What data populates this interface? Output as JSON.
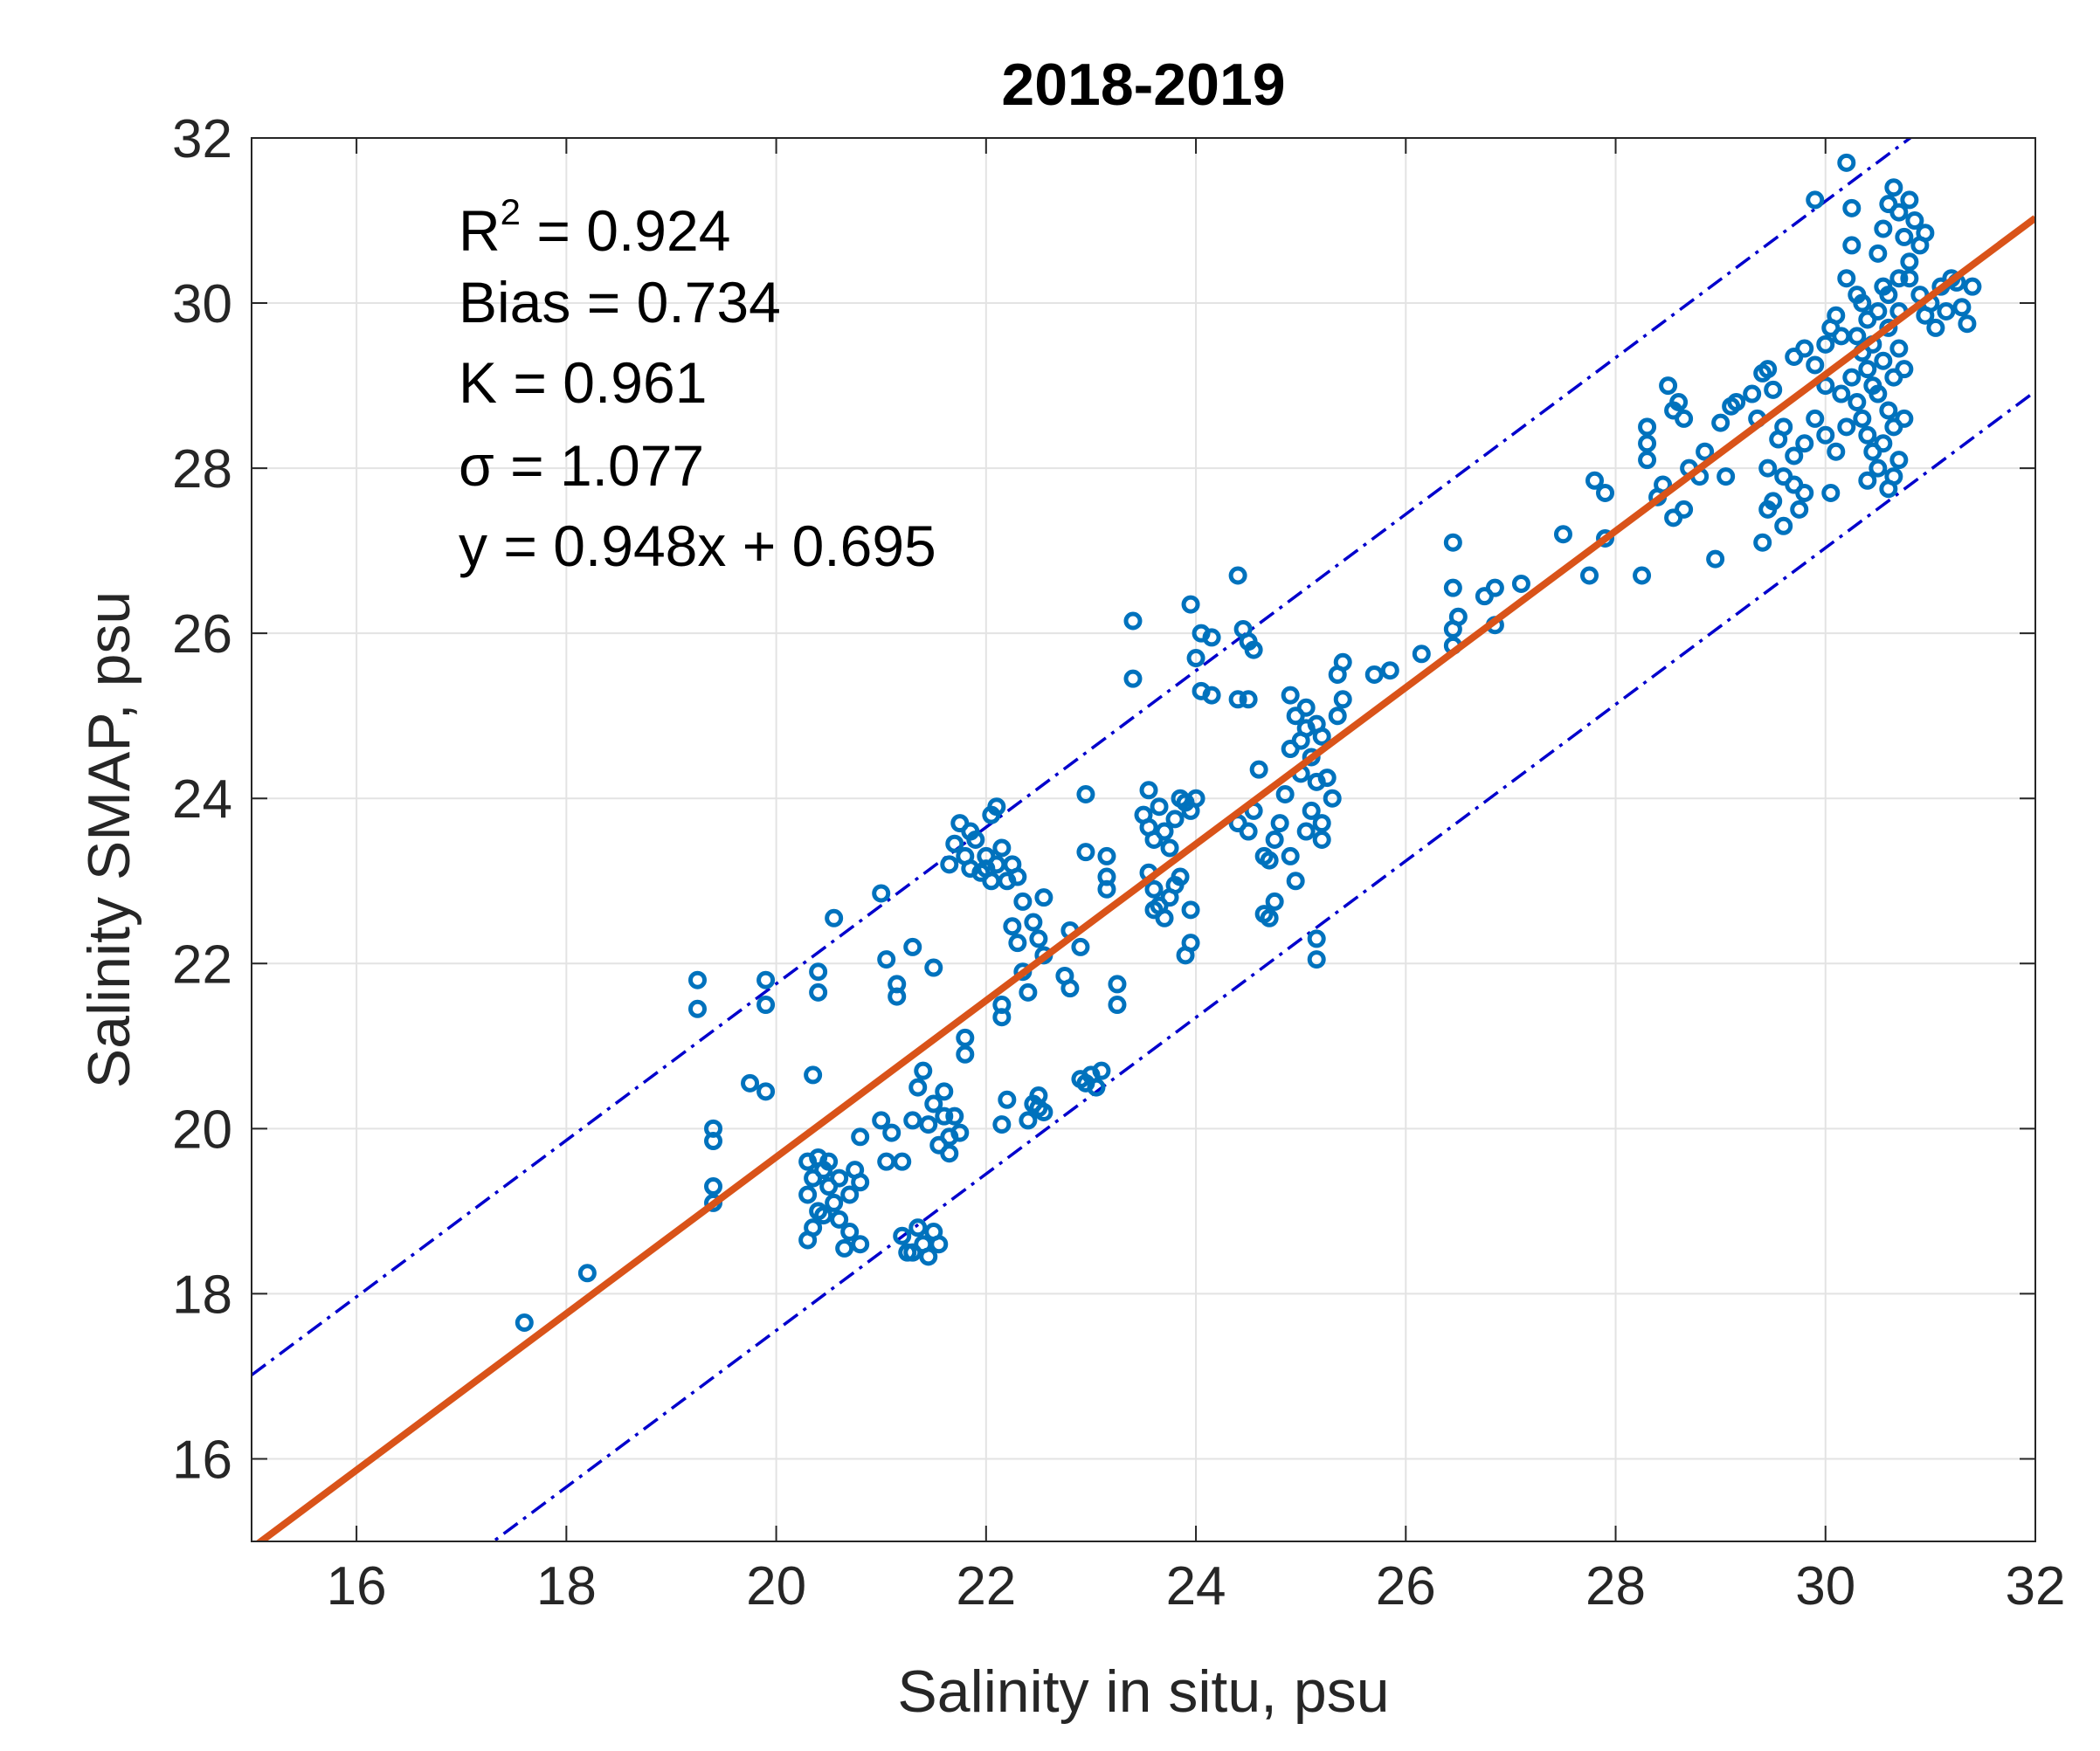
{
  "chart_data": {
    "type": "scatter",
    "title": "2018-2019",
    "xlabel": "Salinity in situ, psu",
    "ylabel": "Salinity  SMAP, psu",
    "xlim": [
      15,
      32
    ],
    "ylim": [
      15,
      32
    ],
    "xticks": [
      16,
      18,
      20,
      22,
      24,
      26,
      28,
      30,
      32
    ],
    "yticks": [
      16,
      18,
      20,
      22,
      24,
      26,
      28,
      30,
      32
    ],
    "grid": true,
    "annotations": {
      "r2_base": "R",
      "r2_sup": "2",
      "r2_value": " = 0.924",
      "bias": "Bias = 0.734",
      "k": "K = 0.961",
      "sigma": "σ = 1.077",
      "equation": "y = 0.948x + 0.695"
    },
    "fit_line": {
      "slope": 0.948,
      "intercept": 0.695,
      "color": "#d95319"
    },
    "confidence_lines": {
      "offset": 2.1,
      "color": "#0000cc"
    },
    "marker_color": "#0072bd",
    "points": [
      [
        17.6,
        17.65
      ],
      [
        18.2,
        18.25
      ],
      [
        19.25,
        21.8
      ],
      [
        19.25,
        21.45
      ],
      [
        19.4,
        20.0
      ],
      [
        19.4,
        19.85
      ],
      [
        19.4,
        19.3
      ],
      [
        19.4,
        19.1
      ],
      [
        19.75,
        20.55
      ],
      [
        19.9,
        20.45
      ],
      [
        19.9,
        21.8
      ],
      [
        19.9,
        21.5
      ],
      [
        20.35,
        20.65
      ],
      [
        20.4,
        21.9
      ],
      [
        20.4,
        21.65
      ],
      [
        20.55,
        22.55
      ],
      [
        20.3,
        19.6
      ],
      [
        20.35,
        19.4
      ],
      [
        20.3,
        19.2
      ],
      [
        20.4,
        19.0
      ],
      [
        20.35,
        18.8
      ],
      [
        20.3,
        18.65
      ],
      [
        20.45,
        19.5
      ],
      [
        20.5,
        19.3
      ],
      [
        20.55,
        19.1
      ],
      [
        20.4,
        19.65
      ],
      [
        20.6,
        19.4
      ],
      [
        20.7,
        19.2
      ],
      [
        20.75,
        19.5
      ],
      [
        20.8,
        19.35
      ],
      [
        20.6,
        18.9
      ],
      [
        20.7,
        18.75
      ],
      [
        20.8,
        18.6
      ],
      [
        20.65,
        18.55
      ],
      [
        20.5,
        19.6
      ],
      [
        20.45,
        18.95
      ],
      [
        20.8,
        19.9
      ],
      [
        21.0,
        20.1
      ],
      [
        21.05,
        19.6
      ],
      [
        21.1,
        19.95
      ],
      [
        21.2,
        19.6
      ],
      [
        21.0,
        22.85
      ],
      [
        21.05,
        22.05
      ],
      [
        21.15,
        21.75
      ],
      [
        21.15,
        21.6
      ],
      [
        21.3,
        22.2
      ],
      [
        21.5,
        21.95
      ],
      [
        21.2,
        18.7
      ],
      [
        21.25,
        18.5
      ],
      [
        21.35,
        18.8
      ],
      [
        21.4,
        18.6
      ],
      [
        21.45,
        18.45
      ],
      [
        21.55,
        18.6
      ],
      [
        21.5,
        18.75
      ],
      [
        21.3,
        18.5
      ],
      [
        21.3,
        20.1
      ],
      [
        21.35,
        20.5
      ],
      [
        21.4,
        20.7
      ],
      [
        21.45,
        20.05
      ],
      [
        21.5,
        20.3
      ],
      [
        21.55,
        19.8
      ],
      [
        21.6,
        20.15
      ],
      [
        21.6,
        20.45
      ],
      [
        21.65,
        19.9
      ],
      [
        21.7,
        20.15
      ],
      [
        21.75,
        19.95
      ],
      [
        21.65,
        19.7
      ],
      [
        21.8,
        20.9
      ],
      [
        21.8,
        21.1
      ],
      [
        21.65,
        23.2
      ],
      [
        21.7,
        23.45
      ],
      [
        21.75,
        23.7
      ],
      [
        21.8,
        23.3
      ],
      [
        21.85,
        23.15
      ],
      [
        21.9,
        23.5
      ],
      [
        21.95,
        23.1
      ],
      [
        22.0,
        23.3
      ],
      [
        22.05,
        23.0
      ],
      [
        22.1,
        23.2
      ],
      [
        22.15,
        23.4
      ],
      [
        22.2,
        23.0
      ],
      [
        22.25,
        23.2
      ],
      [
        22.3,
        23.05
      ],
      [
        22.05,
        23.8
      ],
      [
        22.1,
        23.9
      ],
      [
        21.85,
        23.6
      ],
      [
        22.0,
        23.15
      ],
      [
        22.15,
        21.5
      ],
      [
        22.15,
        21.35
      ],
      [
        22.15,
        20.05
      ],
      [
        22.2,
        20.35
      ],
      [
        22.25,
        22.45
      ],
      [
        22.3,
        22.25
      ],
      [
        22.35,
        21.9
      ],
      [
        22.35,
        22.75
      ],
      [
        22.4,
        21.65
      ],
      [
        22.45,
        22.5
      ],
      [
        22.5,
        22.3
      ],
      [
        22.55,
        22.1
      ],
      [
        22.55,
        22.8
      ],
      [
        22.45,
        20.3
      ],
      [
        22.5,
        20.4
      ],
      [
        22.55,
        20.2
      ],
      [
        22.4,
        20.1
      ],
      [
        22.5,
        20.25
      ],
      [
        22.75,
        21.85
      ],
      [
        22.8,
        21.7
      ],
      [
        22.8,
        22.4
      ],
      [
        22.9,
        22.2
      ],
      [
        22.95,
        23.35
      ],
      [
        22.95,
        24.05
      ],
      [
        22.9,
        20.6
      ],
      [
        23.0,
        20.65
      ],
      [
        23.05,
        20.5
      ],
      [
        23.1,
        20.7
      ],
      [
        22.95,
        20.55
      ],
      [
        23.15,
        23.3
      ],
      [
        23.15,
        23.05
      ],
      [
        23.15,
        22.9
      ],
      [
        23.25,
        21.75
      ],
      [
        23.25,
        21.5
      ],
      [
        23.4,
        26.15
      ],
      [
        23.4,
        25.45
      ],
      [
        23.5,
        23.8
      ],
      [
        23.55,
        24.1
      ],
      [
        23.55,
        23.65
      ],
      [
        23.6,
        23.5
      ],
      [
        23.65,
        23.9
      ],
      [
        23.7,
        23.6
      ],
      [
        23.75,
        23.4
      ],
      [
        23.8,
        23.75
      ],
      [
        23.85,
        24.0
      ],
      [
        23.9,
        23.95
      ],
      [
        23.95,
        23.85
      ],
      [
        23.55,
        23.1
      ],
      [
        23.6,
        22.9
      ],
      [
        23.65,
        22.7
      ],
      [
        23.7,
        22.55
      ],
      [
        23.75,
        22.8
      ],
      [
        23.8,
        22.95
      ],
      [
        23.85,
        23.05
      ],
      [
        23.6,
        22.65
      ],
      [
        23.9,
        22.1
      ],
      [
        23.95,
        22.25
      ],
      [
        23.95,
        22.65
      ],
      [
        24.0,
        24.0
      ],
      [
        23.95,
        26.35
      ],
      [
        24.0,
        25.7
      ],
      [
        24.05,
        26.0
      ],
      [
        24.15,
        25.95
      ],
      [
        24.05,
        25.3
      ],
      [
        24.15,
        25.25
      ],
      [
        24.4,
        26.7
      ],
      [
        24.45,
        26.05
      ],
      [
        24.5,
        25.9
      ],
      [
        24.55,
        25.8
      ],
      [
        24.4,
        25.2
      ],
      [
        24.5,
        25.2
      ],
      [
        24.4,
        23.7
      ],
      [
        24.5,
        23.6
      ],
      [
        24.55,
        23.85
      ],
      [
        24.6,
        24.35
      ],
      [
        24.65,
        23.3
      ],
      [
        24.7,
        23.25
      ],
      [
        24.75,
        23.5
      ],
      [
        24.8,
        23.7
      ],
      [
        24.65,
        22.6
      ],
      [
        24.7,
        22.55
      ],
      [
        24.75,
        22.75
      ],
      [
        24.85,
        24.05
      ],
      [
        24.9,
        24.6
      ],
      [
        24.9,
        25.25
      ],
      [
        24.95,
        25.0
      ],
      [
        25.0,
        24.7
      ],
      [
        25.05,
        24.85
      ],
      [
        25.05,
        25.1
      ],
      [
        25.1,
        24.5
      ],
      [
        25.15,
        24.9
      ],
      [
        25.2,
        24.75
      ],
      [
        25.0,
        24.3
      ],
      [
        25.15,
        24.2
      ],
      [
        24.9,
        23.3
      ],
      [
        24.95,
        23.0
      ],
      [
        25.05,
        23.6
      ],
      [
        25.1,
        23.85
      ],
      [
        25.2,
        23.5
      ],
      [
        25.2,
        23.7
      ],
      [
        25.15,
        22.3
      ],
      [
        25.15,
        22.05
      ],
      [
        25.25,
        24.25
      ],
      [
        25.3,
        24.0
      ],
      [
        25.35,
        25.0
      ],
      [
        25.4,
        25.2
      ],
      [
        25.35,
        25.5
      ],
      [
        25.4,
        25.65
      ],
      [
        25.7,
        25.5
      ],
      [
        25.85,
        25.55
      ],
      [
        26.15,
        25.75
      ],
      [
        26.45,
        25.85
      ],
      [
        26.45,
        26.05
      ],
      [
        26.5,
        26.2
      ],
      [
        26.45,
        26.55
      ],
      [
        26.45,
        27.1
      ],
      [
        26.75,
        26.45
      ],
      [
        26.85,
        26.55
      ],
      [
        26.85,
        26.1
      ],
      [
        27.1,
        26.6
      ],
      [
        27.5,
        27.2
      ],
      [
        27.75,
        26.7
      ],
      [
        27.8,
        27.85
      ],
      [
        27.9,
        27.15
      ],
      [
        27.9,
        27.7
      ],
      [
        28.25,
        26.7
      ],
      [
        28.3,
        28.5
      ],
      [
        28.3,
        28.3
      ],
      [
        28.3,
        28.1
      ],
      [
        28.4,
        27.65
      ],
      [
        28.45,
        27.8
      ],
      [
        28.5,
        29.0
      ],
      [
        28.55,
        28.7
      ],
      [
        28.6,
        28.8
      ],
      [
        28.65,
        28.6
      ],
      [
        28.55,
        27.4
      ],
      [
        28.65,
        27.5
      ],
      [
        28.7,
        28.0
      ],
      [
        28.8,
        27.9
      ],
      [
        28.85,
        28.2
      ],
      [
        28.95,
        26.9
      ],
      [
        29.0,
        28.55
      ],
      [
        29.05,
        27.9
      ],
      [
        29.1,
        28.75
      ],
      [
        29.15,
        28.8
      ],
      [
        29.3,
        28.9
      ],
      [
        29.4,
        29.15
      ],
      [
        29.45,
        29.2
      ],
      [
        29.5,
        28.95
      ],
      [
        29.35,
        28.6
      ],
      [
        29.4,
        27.1
      ],
      [
        29.45,
        27.5
      ],
      [
        29.5,
        27.6
      ],
      [
        29.6,
        27.3
      ],
      [
        29.7,
        27.8
      ],
      [
        29.75,
        27.5
      ],
      [
        29.8,
        27.7
      ],
      [
        29.45,
        28.0
      ],
      [
        29.55,
        28.35
      ],
      [
        29.6,
        28.5
      ],
      [
        29.7,
        28.15
      ],
      [
        29.8,
        28.3
      ],
      [
        29.9,
        28.6
      ],
      [
        30.0,
        28.4
      ],
      [
        30.05,
        27.7
      ],
      [
        29.6,
        27.9
      ],
      [
        29.7,
        29.35
      ],
      [
        29.8,
        29.45
      ],
      [
        29.9,
        29.25
      ],
      [
        30.0,
        29.5
      ],
      [
        30.05,
        29.7
      ],
      [
        30.1,
        29.85
      ],
      [
        30.15,
        29.6
      ],
      [
        29.9,
        31.25
      ],
      [
        30.2,
        31.7
      ],
      [
        30.25,
        31.15
      ],
      [
        30.25,
        30.7
      ],
      [
        30.2,
        30.3
      ],
      [
        30.3,
        30.1
      ],
      [
        30.35,
        30.0
      ],
      [
        30.4,
        29.8
      ],
      [
        30.3,
        29.6
      ],
      [
        30.35,
        29.4
      ],
      [
        30.4,
        29.2
      ],
      [
        30.45,
        29.0
      ],
      [
        30.3,
        28.8
      ],
      [
        30.35,
        28.6
      ],
      [
        30.4,
        28.4
      ],
      [
        30.45,
        28.2
      ],
      [
        30.5,
        28.0
      ],
      [
        30.4,
        27.85
      ],
      [
        30.5,
        28.9
      ],
      [
        30.45,
        29.5
      ],
      [
        30.5,
        29.9
      ],
      [
        30.55,
        30.2
      ],
      [
        30.6,
        30.1
      ],
      [
        30.6,
        29.7
      ],
      [
        30.55,
        29.3
      ],
      [
        30.6,
        28.7
      ],
      [
        30.55,
        28.3
      ],
      [
        30.6,
        27.75
      ],
      [
        30.65,
        28.5
      ],
      [
        30.65,
        29.1
      ],
      [
        30.7,
        29.45
      ],
      [
        30.7,
        28.1
      ],
      [
        30.65,
        27.9
      ],
      [
        30.75,
        28.6
      ],
      [
        30.7,
        29.9
      ],
      [
        30.75,
        29.2
      ],
      [
        30.5,
        30.6
      ],
      [
        30.55,
        30.9
      ],
      [
        30.6,
        31.2
      ],
      [
        30.65,
        31.4
      ],
      [
        30.7,
        31.1
      ],
      [
        30.75,
        30.8
      ],
      [
        30.8,
        31.25
      ],
      [
        30.85,
        31.0
      ],
      [
        30.9,
        30.7
      ],
      [
        30.95,
        30.85
      ],
      [
        30.8,
        30.5
      ],
      [
        30.7,
        30.3
      ],
      [
        30.8,
        30.3
      ],
      [
        30.9,
        30.1
      ],
      [
        30.95,
        29.85
      ],
      [
        31.0,
        30.0
      ],
      [
        31.05,
        29.7
      ],
      [
        31.1,
        30.2
      ],
      [
        31.15,
        29.9
      ],
      [
        31.2,
        30.3
      ],
      [
        31.3,
        29.95
      ],
      [
        31.35,
        29.75
      ],
      [
        31.4,
        30.2
      ],
      [
        31.25,
        30.25
      ],
      [
        30.2,
        28.5
      ],
      [
        30.15,
        28.9
      ],
      [
        30.25,
        29.1
      ],
      [
        30.1,
        28.2
      ],
      [
        30.0,
        29.0
      ]
    ]
  }
}
